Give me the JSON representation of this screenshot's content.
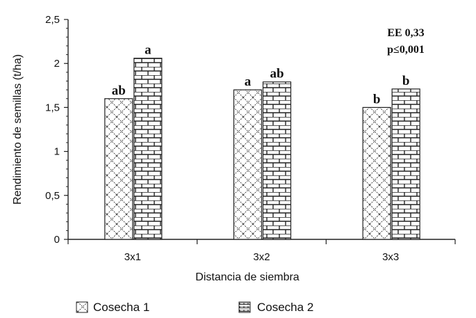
{
  "chart_data": {
    "type": "bar",
    "title": "",
    "xlabel": "Distancia de siembra",
    "ylabel": "Rendimiento de semillas (t/ha)",
    "ylim": [
      0,
      2.5
    ],
    "yticks": [
      "0",
      "0,5",
      "1",
      "1,5",
      "2",
      "2,5"
    ],
    "grid": false,
    "legend_position": "bottom",
    "categories": [
      "3x1",
      "3x2",
      "3x3"
    ],
    "series": [
      {
        "name": "Cosecha 1",
        "pattern": "crosshatch",
        "values": [
          1.6,
          1.7,
          1.5
        ],
        "labels": [
          "ab",
          "a",
          "b"
        ]
      },
      {
        "name": "Cosecha 2",
        "pattern": "brick",
        "values": [
          2.06,
          1.79,
          1.71
        ],
        "labels": [
          "a",
          "ab",
          "b"
        ]
      }
    ],
    "annotations": [
      "EE 0,33",
      "p≤0,001"
    ]
  }
}
